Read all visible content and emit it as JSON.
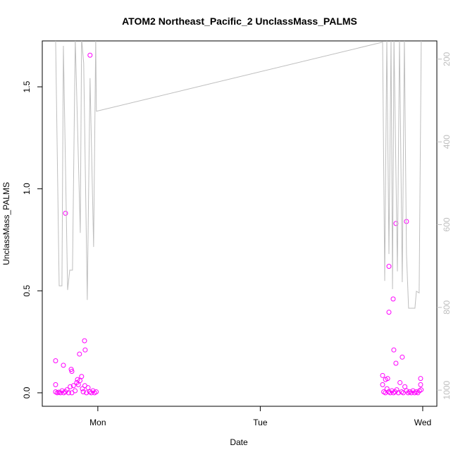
{
  "chart_data": {
    "type": "scatter",
    "title": "ATOM2 Northeast_Pacific_2 UnclassMass_PALMS",
    "x_label": "Date",
    "y_label": "UnclassMass_PALMS",
    "xlim": [
      -0.342,
      2.087
    ],
    "xticks": [
      {
        "value": 0,
        "label": "Mon"
      },
      {
        "value": 1,
        "label": "Tue"
      },
      {
        "value": 2,
        "label": "Wed"
      }
    ],
    "ylim": [
      -0.066,
      1.725
    ],
    "yticks": [
      {
        "value": 0,
        "label": "0.0"
      },
      {
        "value": 0.5,
        "label": "0.5"
      },
      {
        "value": 1,
        "label": "1.0"
      },
      {
        "value": 1.5,
        "label": "1.5"
      }
    ],
    "y2lim": [
      1039,
      156
    ],
    "y2ticks": [
      200,
      400,
      600,
      800,
      1000
    ],
    "series": [
      {
        "color": "#ff00ff",
        "x": [
          -0.26,
          -0.25,
          -0.24,
          -0.23,
          -0.22,
          -0.21,
          -0.2,
          -0.19,
          -0.18,
          -0.17,
          -0.16,
          -0.15,
          -0.14,
          -0.13,
          -0.125,
          -0.12,
          -0.11,
          -0.1,
          -0.095,
          -0.09,
          -0.08,
          -0.07,
          -0.06,
          -0.05,
          -0.04,
          -0.03,
          -0.02,
          -0.01,
          -0.26,
          -0.26,
          -0.199,
          -0.048,
          -0.082,
          -0.078,
          -0.113,
          -0.212,
          -0.164,
          -0.16,
          1.76,
          1.77,
          1.78,
          1.79,
          1.8,
          1.81,
          1.82,
          1.83,
          1.84,
          1.85,
          1.86,
          1.87,
          1.88,
          1.89,
          1.9,
          1.91,
          1.92,
          1.93,
          1.94,
          1.95,
          1.96,
          1.97,
          1.98,
          1.99,
          1.792,
          1.835,
          1.9,
          1.818,
          1.792,
          1.822,
          1.874,
          1.835,
          1.753,
          1.784,
          1.771,
          1.753,
          1.987,
          1.987
        ],
        "values": [
          0.005,
          0.0,
          0.003,
          0.0,
          0.01,
          0.0,
          0.005,
          0.015,
          0.0,
          0.03,
          0.0,
          0.035,
          0.01,
          0.05,
          0.065,
          0.04,
          0.06,
          0.08,
          0.02,
          0.005,
          0.035,
          0.0,
          0.025,
          0.005,
          0.0,
          0.01,
          0.0,
          0.005,
          0.157,
          0.04,
          0.88,
          1.655,
          0.255,
          0.21,
          0.19,
          0.135,
          0.115,
          0.105,
          0.005,
          0.0,
          0.02,
          0.005,
          0.0,
          0.01,
          0.0,
          0.005,
          0.015,
          0.0,
          0.05,
          0.005,
          0.0,
          0.03,
          0.01,
          0.0,
          0.005,
          0.0,
          0.01,
          0.0,
          0.005,
          0.0,
          0.01,
          0.015,
          0.62,
          0.83,
          0.84,
          0.46,
          0.395,
          0.21,
          0.175,
          0.145,
          0.085,
          0.07,
          0.065,
          0.04,
          0.07,
          0.04
        ]
      },
      {
        "color": "#bebebe",
        "axis": "y2",
        "x": [
          -0.26,
          -0.238,
          -0.221,
          -0.212,
          -0.186,
          -0.173,
          -0.156,
          -0.139,
          -0.108,
          -0.1,
          -0.087,
          -0.065,
          -0.048,
          -0.026,
          -0.013,
          -0.009,
          1.753,
          1.766,
          1.779,
          1.792,
          1.805,
          1.814,
          1.823,
          1.844,
          1.857,
          1.874,
          1.887,
          1.9,
          1.913,
          1.952,
          1.961,
          1.978,
          1.991,
          2.004
        ],
        "values": [
          150,
          748,
          748,
          168,
          758,
          710,
          710,
          150,
          620,
          150,
          210,
          782,
          246,
          654,
          150,
          326,
          159,
          736,
          150,
          671,
          150,
          756,
          150,
          713,
          150,
          739,
          150,
          671,
          802,
          802,
          761,
          765,
          150,
          150
        ]
      }
    ]
  }
}
